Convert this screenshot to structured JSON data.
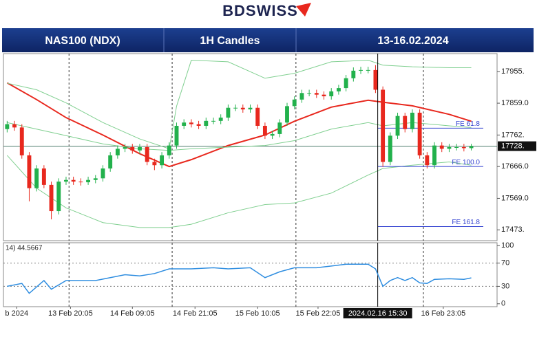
{
  "logo": "BDSWISS",
  "header": {
    "instrument": "NAS100 (NDX)",
    "timeframe": "1H Candles",
    "dates": "13-16.02.2024"
  },
  "chart_data": [
    {
      "type": "candlestick",
      "open": [
        17780,
        17795,
        17785,
        17700,
        17600,
        17660,
        17610,
        17530,
        17620,
        17625,
        17620,
        17618,
        17625,
        17630,
        17660,
        17700,
        17720,
        17725,
        17715,
        17725,
        17680,
        17670,
        17700,
        17730,
        17790,
        17800,
        17795,
        17790,
        17805,
        17805,
        17815,
        17845,
        17845,
        17840,
        17845,
        17790,
        17760,
        17765,
        17800,
        17850,
        17870,
        17890,
        17890,
        17885,
        17880,
        17895,
        17905,
        17935,
        17958,
        17960,
        17960,
        17900,
        17680,
        17760,
        17820,
        17780,
        17830,
        17700,
        17670,
        17730,
        17720,
        17725,
        17725,
        17722
      ],
      "high": [
        17805,
        17805,
        17795,
        17710,
        17670,
        17670,
        17620,
        17630,
        17635,
        17635,
        17630,
        17635,
        17640,
        17670,
        17710,
        17730,
        17735,
        17735,
        17735,
        17735,
        17690,
        17710,
        17740,
        17800,
        17810,
        17810,
        17805,
        17815,
        17815,
        17825,
        17855,
        17855,
        17855,
        17855,
        17855,
        17800,
        17775,
        17810,
        17860,
        17880,
        17900,
        17900,
        17900,
        17895,
        17905,
        17915,
        17945,
        17968,
        17970,
        17970,
        17975,
        17910,
        17770,
        17830,
        17830,
        17840,
        17840,
        17710,
        17740,
        17740,
        17735,
        17735,
        17735,
        17735
      ],
      "low": [
        17770,
        17775,
        17690,
        17560,
        17590,
        17600,
        17505,
        17520,
        17610,
        17610,
        17608,
        17610,
        17615,
        17620,
        17650,
        17690,
        17710,
        17705,
        17705,
        17670,
        17655,
        17660,
        17690,
        17720,
        17780,
        17785,
        17780,
        17780,
        17795,
        17795,
        17805,
        17835,
        17830,
        17830,
        17780,
        17750,
        17750,
        17755,
        17790,
        17840,
        17860,
        17880,
        17875,
        17870,
        17870,
        17885,
        17895,
        17925,
        17948,
        17950,
        17890,
        17665,
        17670,
        17750,
        17770,
        17770,
        17690,
        17660,
        17660,
        17710,
        17710,
        17715,
        17712,
        17715
      ],
      "close": [
        17795,
        17785,
        17700,
        17600,
        17660,
        17610,
        17530,
        17620,
        17625,
        17620,
        17618,
        17625,
        17630,
        17660,
        17700,
        17720,
        17725,
        17715,
        17725,
        17680,
        17670,
        17700,
        17730,
        17790,
        17800,
        17795,
        17790,
        17805,
        17805,
        17815,
        17845,
        17845,
        17840,
        17845,
        17790,
        17760,
        17765,
        17800,
        17850,
        17870,
        17890,
        17890,
        17885,
        17880,
        17895,
        17905,
        17935,
        17958,
        17960,
        17960,
        17900,
        17680,
        17760,
        17820,
        17780,
        17830,
        17700,
        17670,
        17730,
        17720,
        17725,
        17725,
        17722,
        17728
      ],
      "up_color": "#22b14c",
      "down_color": "#e8281e",
      "overlays": [
        {
          "color": "#e8281e",
          "x": [
            0,
            4,
            8,
            13,
            18,
            22,
            25,
            30,
            35,
            39,
            44,
            49,
            51,
            55,
            60,
            63
          ],
          "values": [
            17921,
            17870,
            17815,
            17762,
            17705,
            17666,
            17687,
            17730,
            17762,
            17804,
            17847,
            17868,
            17862,
            17851,
            17825,
            17804
          ]
        },
        {
          "color": "#7fcf8f",
          "x": [
            0,
            4,
            8,
            13,
            18,
            22,
            23,
            25,
            30,
            35,
            39,
            44,
            49,
            51,
            55,
            60,
            63
          ],
          "values": [
            17920,
            17900,
            17860,
            17800,
            17750,
            17720,
            17850,
            17990,
            17985,
            17935,
            17950,
            17985,
            17990,
            17975,
            17970,
            17967,
            17967
          ]
        },
        {
          "color": "#7fcf8f",
          "x": [
            0,
            4,
            8,
            13,
            18,
            22,
            25,
            30,
            35,
            39,
            44,
            49,
            51,
            55,
            60,
            63
          ],
          "values": [
            17800,
            17780,
            17760,
            17735,
            17720,
            17715,
            17720,
            17725,
            17730,
            17745,
            17780,
            17800,
            17790,
            17800,
            17790,
            17785
          ]
        },
        {
          "color": "#7fcf8f",
          "x": [
            0,
            4,
            8,
            13,
            18,
            22,
            25,
            30,
            35,
            39,
            44,
            49,
            51,
            55,
            60,
            63
          ],
          "values": [
            17700,
            17600,
            17540,
            17495,
            17480,
            17480,
            17490,
            17525,
            17550,
            17555,
            17585,
            17640,
            17660,
            17670,
            17680,
            17670
          ]
        }
      ],
      "levels": [
        {
          "label": "FE 61.8",
          "value": 17783
        },
        {
          "label": "FE 100.0",
          "value": 17666
        },
        {
          "label": "FE 161.8",
          "value": 17483
        }
      ],
      "level_start": 50.3,
      "current_price": {
        "value": 17728,
        "label": "17728."
      },
      "ylim": [
        17440,
        18010
      ],
      "yticks": [
        {
          "value": 17955,
          "label": "17955."
        },
        {
          "value": 17859,
          "label": "17859.0"
        },
        {
          "value": 17762,
          "label": "17762."
        },
        {
          "value": 17666,
          "label": "17666.0"
        },
        {
          "value": 17569,
          "label": "17569.0"
        },
        {
          "value": 17473,
          "label": "17473."
        }
      ],
      "xlim": [
        -0.5,
        66.5
      ],
      "xticks": [
        {
          "value": 1.3,
          "label": "b 2024"
        },
        {
          "value": 8.6,
          "label": "13 Feb 20:05"
        },
        {
          "value": 17,
          "label": "14 Feb 09:05"
        },
        {
          "value": 25.5,
          "label": "14 Feb 21:05"
        },
        {
          "value": 34,
          "label": "15 Feb 10:05"
        },
        {
          "value": 42.2,
          "label": "15 Feb 22:05"
        },
        {
          "value": 59.2,
          "label": "16 Feb 23:05"
        }
      ],
      "separators": [
        8.4,
        22.4,
        39.2,
        56.5
      ],
      "cursor": {
        "value": 50.3,
        "label": "2024.02.16 15:30"
      }
    },
    {
      "type": "line",
      "label": "14) 44.5667",
      "color": "#2e8de0",
      "x": [
        0,
        2,
        3,
        5,
        6,
        8,
        12,
        14,
        16,
        18,
        20,
        22,
        25,
        28,
        30,
        33,
        35,
        37,
        39,
        42,
        44,
        46,
        49,
        50,
        51,
        52,
        53,
        54,
        55,
        56,
        57,
        58,
        60,
        62,
        63
      ],
      "values": [
        30,
        35,
        18,
        40,
        25,
        40,
        40,
        45,
        50,
        48,
        52,
        60,
        60,
        62,
        60,
        62,
        45,
        55,
        62,
        62,
        65,
        68,
        68,
        60,
        30,
        40,
        45,
        40,
        45,
        36,
        35,
        42,
        43,
        42,
        44.5667
      ],
      "ylim": [
        -5,
        105
      ],
      "yticks": [
        100,
        70,
        30,
        0
      ],
      "levels": [
        70,
        30
      ]
    }
  ]
}
